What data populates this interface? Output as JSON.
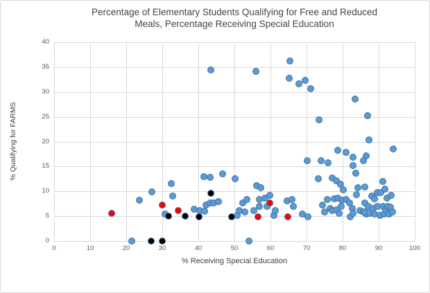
{
  "title": {
    "line1": "Percentage of Elementary Students Qualifying for Free and Reduced",
    "line2": "Meals, Percentage Receiving Special Education"
  },
  "colors": {
    "blue_fill": "#5B9BD5",
    "red_fill": "#FF0000",
    "black_fill": "#000000",
    "marker_border": "#41719C",
    "gridline": "#D9D9D9",
    "tick_text": "#595959",
    "title_text": "#444444"
  },
  "chart_data": {
    "type": "scatter",
    "title": "Percentage of Elementary Students Qualifying for Free and Reduced Meals, Percentage Receiving Special Education",
    "xlabel": "% Receiving Special Education",
    "ylabel": "% Qualifying for FARMS",
    "xlim": [
      0,
      100
    ],
    "ylim": [
      0,
      40
    ],
    "xticks": [
      0,
      10,
      20,
      30,
      40,
      50,
      60,
      70,
      80,
      90,
      100
    ],
    "yticks": [
      0,
      5,
      10,
      15,
      20,
      25,
      30,
      35,
      40
    ],
    "grid": true,
    "legend_position": "none",
    "series": [
      {
        "name": "schools-blue",
        "color": "#5B9BD5",
        "points": [
          [
            21.5,
            0
          ],
          [
            54,
            0
          ],
          [
            23.7,
            8.2
          ],
          [
            27.1,
            9.9
          ],
          [
            30.8,
            5.5
          ],
          [
            32.5,
            11.5
          ],
          [
            32.9,
            9.0
          ],
          [
            38.9,
            6.4
          ],
          [
            40.4,
            6.2
          ],
          [
            41.7,
            6.0
          ],
          [
            42.1,
            7.2
          ],
          [
            43.2,
            7.7
          ],
          [
            44.3,
            7.6
          ],
          [
            45.5,
            7.9
          ],
          [
            41.5,
            13.0
          ],
          [
            43.3,
            12.8
          ],
          [
            46.7,
            13.5
          ],
          [
            50.2,
            12.5
          ],
          [
            43.5,
            34.4
          ],
          [
            56,
            34.1
          ],
          [
            50.8,
            5.1
          ],
          [
            51.4,
            6.2
          ],
          [
            52.8,
            5.9
          ],
          [
            52.4,
            7.7
          ],
          [
            53.4,
            8.3
          ],
          [
            55.4,
            6.1
          ],
          [
            56.2,
            11.1
          ],
          [
            57.4,
            10.7
          ],
          [
            57,
            8.3
          ],
          [
            58.4,
            8.6
          ],
          [
            57,
            7.0
          ],
          [
            59.1,
            6.9
          ],
          [
            59.8,
            9.2
          ],
          [
            61,
            5.1
          ],
          [
            61.3,
            6.2
          ],
          [
            64.6,
            8.1
          ],
          [
            66,
            8.4
          ],
          [
            66.3,
            7.0
          ],
          [
            68.8,
            5.5
          ],
          [
            70.4,
            4.9
          ],
          [
            65.4,
            36.3
          ],
          [
            65.2,
            32.7
          ],
          [
            67.9,
            31.7
          ],
          [
            69.6,
            32.4
          ],
          [
            71.2,
            30.6
          ],
          [
            70.2,
            16.2
          ],
          [
            74,
            16.1
          ],
          [
            76,
            15.8
          ],
          [
            73.4,
            24.4
          ],
          [
            73.3,
            12.6
          ],
          [
            77.2,
            12.7
          ],
          [
            78.3,
            12.1
          ],
          [
            79.4,
            11.4
          ],
          [
            80.2,
            10.3
          ],
          [
            74.4,
            7.3
          ],
          [
            75,
            5.8
          ],
          [
            75.8,
            8.3
          ],
          [
            76.5,
            6.6
          ],
          [
            77.1,
            6.1
          ],
          [
            77.7,
            8.5
          ],
          [
            78.3,
            6.3
          ],
          [
            78.7,
            8.7
          ],
          [
            79,
            5.6
          ],
          [
            79.6,
            6.9
          ],
          [
            79.8,
            8.2
          ],
          [
            81,
            8.3
          ],
          [
            82,
            7.7
          ],
          [
            82.1,
            4.9
          ],
          [
            82.7,
            6.6
          ],
          [
            82.9,
            5.6
          ],
          [
            83.9,
            9.4
          ],
          [
            84.2,
            10.8
          ],
          [
            84.8,
            6.2
          ],
          [
            85.8,
            5.8
          ],
          [
            86.2,
            10.9
          ],
          [
            86.5,
            5.4
          ],
          [
            78.7,
            18.2
          ],
          [
            81,
            17.9
          ],
          [
            82.9,
            16.8
          ],
          [
            82.9,
            15.2
          ],
          [
            83.6,
            13.7
          ],
          [
            83.5,
            28.6
          ],
          [
            86.9,
            25.2
          ],
          [
            87.3,
            20.3
          ],
          [
            86.5,
            17.2
          ],
          [
            85.8,
            16.1
          ],
          [
            86.2,
            7.7
          ],
          [
            86.2,
            5.9
          ],
          [
            87.1,
            7.0
          ],
          [
            87.5,
            5.6
          ],
          [
            88.1,
            9.0
          ],
          [
            88.5,
            6.6
          ],
          [
            88.8,
            8.5
          ],
          [
            88.8,
            5.5
          ],
          [
            89.6,
            9.7
          ],
          [
            89.6,
            6.9
          ],
          [
            90.4,
            5.2
          ],
          [
            90.5,
            9.7
          ],
          [
            91.2,
            12.0
          ],
          [
            91.2,
            7.0
          ],
          [
            91.5,
            5.4
          ],
          [
            91.7,
            10.4
          ],
          [
            91.9,
            6.3
          ],
          [
            92.3,
            8.7
          ],
          [
            92.5,
            7.0
          ],
          [
            92.9,
            5.5
          ],
          [
            93.3,
            6.8
          ],
          [
            93.5,
            9.2
          ],
          [
            93.8,
            5.9
          ],
          [
            94,
            18.5
          ]
        ]
      },
      {
        "name": "highlighted-black",
        "color": "#000000",
        "points": [
          [
            27,
            0
          ],
          [
            30,
            0
          ],
          [
            31.8,
            5.0
          ],
          [
            36.4,
            5.0
          ],
          [
            40.2,
            4.9
          ],
          [
            43.5,
            9.6
          ],
          [
            49.2,
            4.9
          ]
        ]
      },
      {
        "name": "highlighted-red",
        "color": "#FF0000",
        "points": [
          [
            16,
            5.6
          ],
          [
            30,
            7.2
          ],
          [
            34.4,
            6.1
          ],
          [
            56.5,
            4.9
          ],
          [
            59.8,
            7.7
          ],
          [
            64.8,
            4.9
          ]
        ]
      }
    ]
  }
}
